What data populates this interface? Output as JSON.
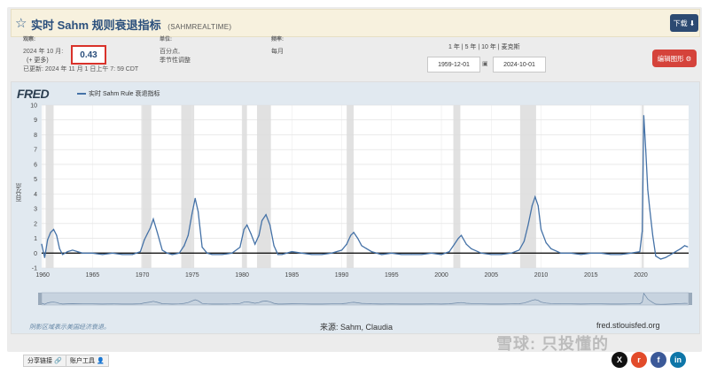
{
  "title": {
    "series_name": "实时 Sahm 规则衰退指标",
    "series_id": "(SAHMREALTIME)",
    "download_label": "下载"
  },
  "observation": {
    "label": "观察:",
    "date": "2024 年 10 月:",
    "value": "0.43",
    "more": "(+ 更多)",
    "updated": "已更新:  2024 年 11 月 1 日上午 7:  59 CDT"
  },
  "units": {
    "label": "单位:",
    "line1": "百分点,",
    "line2": "季节性调整"
  },
  "frequency": {
    "label": "频率:",
    "value": "每月"
  },
  "range": {
    "links": [
      "1 年",
      "5 年",
      "10 年",
      "麦克斯"
    ],
    "start": "1959-12-01",
    "end": "2024-10-01",
    "cal_icon": "calendar-icon"
  },
  "edit_button_label": "编辑图形",
  "chart_legend": "实时 Sahm Rule 衰退指标",
  "logo_text": "FRED",
  "recession_note": "阴影区域表示美国经济衰退。",
  "source": "来源:  Sahm,  Claudia",
  "fred_url": "fred.stlouisfed.org",
  "share_label": "分享链接",
  "account_label": "账户工具",
  "watermark": "雪球: 只投懂的",
  "social": [
    {
      "icon": "x-icon",
      "glyph": "X",
      "color": "#111111"
    },
    {
      "icon": "reddit-icon",
      "glyph": "r",
      "color": "#e24b2a"
    },
    {
      "icon": "facebook-icon",
      "glyph": "f",
      "color": "#3b5998"
    },
    {
      "icon": "linkedin-icon",
      "glyph": "in",
      "color": "#0e76a8"
    }
  ],
  "chart_data": {
    "type": "line",
    "title": "实时 Sahm Rule 衰退指标",
    "ylabel": "百分点",
    "xlabel": "",
    "ylim": [
      -1,
      10
    ],
    "xlim": [
      1959.9,
      2024.8
    ],
    "yticks": [
      -1,
      0,
      1,
      2,
      3,
      4,
      5,
      6,
      7,
      8,
      9,
      10
    ],
    "xticks": [
      1960,
      1965,
      1970,
      1975,
      1980,
      1985,
      1990,
      1995,
      2000,
      2005,
      2010,
      2015,
      2020
    ],
    "recessions": [
      [
        1960.3,
        1961.1
      ],
      [
        1969.9,
        1970.9
      ],
      [
        1973.9,
        1975.2
      ],
      [
        1980.0,
        1980.5
      ],
      [
        1981.5,
        1982.9
      ],
      [
        1990.5,
        1991.2
      ],
      [
        2001.2,
        2001.9
      ],
      [
        2007.9,
        2009.5
      ],
      [
        2020.1,
        2020.3
      ]
    ],
    "series": [
      {
        "name": "实时 Sahm Rule 衰退指标",
        "color": "#4572a7",
        "x": [
          1959.9,
          1960.2,
          1960.5,
          1960.8,
          1961.1,
          1961.4,
          1961.7,
          1962.0,
          1962.5,
          1963.0,
          1963.5,
          1964.0,
          1965.0,
          1966.0,
          1967.0,
          1968.0,
          1969.0,
          1969.8,
          1970.2,
          1970.5,
          1970.8,
          1971.1,
          1971.5,
          1972.0,
          1972.5,
          1973.0,
          1973.7,
          1974.2,
          1974.6,
          1975.0,
          1975.3,
          1975.6,
          1976.0,
          1976.5,
          1977.0,
          1978.0,
          1979.0,
          1979.8,
          1980.2,
          1980.5,
          1980.9,
          1981.3,
          1981.7,
          1982.0,
          1982.4,
          1982.8,
          1983.2,
          1983.6,
          1984.0,
          1985.0,
          1986.0,
          1987.0,
          1988.0,
          1989.0,
          1990.0,
          1990.5,
          1990.9,
          1991.2,
          1991.6,
          1992.0,
          1992.5,
          1993.0,
          1994.0,
          1995.0,
          1996.0,
          1997.0,
          1998.0,
          1999.0,
          2000.0,
          2000.8,
          2001.3,
          2001.7,
          2002.0,
          2002.5,
          2003.0,
          2004.0,
          2005.0,
          2006.0,
          2007.0,
          2007.8,
          2008.3,
          2008.7,
          2009.1,
          2009.4,
          2009.7,
          2010.0,
          2010.5,
          2011.0,
          2012.0,
          2013.0,
          2014.0,
          2015.0,
          2016.0,
          2017.0,
          2018.0,
          2019.0,
          2019.9,
          2020.15,
          2020.3,
          2020.5,
          2020.7,
          2020.9,
          2021.2,
          2021.5,
          2022.0,
          2022.5,
          2023.0,
          2023.5,
          2024.0,
          2024.4,
          2024.7
        ],
        "y": [
          0.6,
          -0.3,
          0.9,
          1.4,
          1.6,
          1.2,
          0.3,
          -0.1,
          0.1,
          0.2,
          0.1,
          0.0,
          0.0,
          -0.1,
          0.0,
          -0.1,
          -0.1,
          0.1,
          0.9,
          1.3,
          1.7,
          2.3,
          1.4,
          0.2,
          0.0,
          -0.1,
          0.0,
          0.5,
          1.2,
          2.7,
          3.7,
          2.8,
          0.4,
          0.0,
          -0.1,
          -0.1,
          0.0,
          0.4,
          1.6,
          1.9,
          1.3,
          0.6,
          1.2,
          2.2,
          2.6,
          1.9,
          0.5,
          -0.1,
          -0.1,
          0.1,
          0.0,
          -0.1,
          -0.1,
          0.0,
          0.2,
          0.6,
          1.2,
          1.4,
          1.0,
          0.5,
          0.3,
          0.1,
          -0.1,
          0.0,
          -0.1,
          -0.1,
          -0.1,
          0.0,
          -0.1,
          0.1,
          0.6,
          1.0,
          1.2,
          0.6,
          0.3,
          0.0,
          -0.1,
          -0.1,
          0.0,
          0.2,
          0.8,
          1.9,
          3.2,
          3.8,
          3.2,
          1.6,
          0.7,
          0.3,
          0.0,
          0.0,
          -0.1,
          0.0,
          0.0,
          -0.1,
          -0.1,
          0.0,
          0.1,
          1.5,
          9.3,
          7.0,
          4.3,
          3.0,
          1.2,
          -0.2,
          -0.4,
          -0.3,
          -0.1,
          0.1,
          0.3,
          0.5,
          0.43
        ]
      }
    ]
  }
}
